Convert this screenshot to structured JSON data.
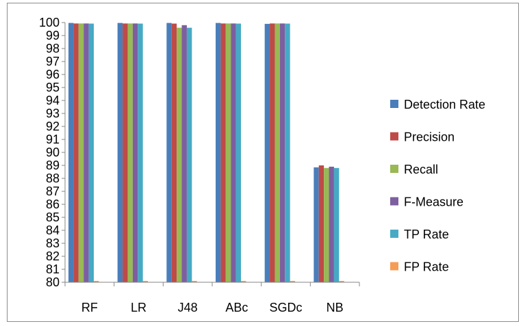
{
  "chart_data": {
    "type": "bar",
    "title": "",
    "xlabel": "",
    "ylabel": "",
    "categories": [
      "RF",
      "LR",
      "J48",
      "ABc",
      "SGDc",
      "NB"
    ],
    "ylim": [
      80,
      100
    ],
    "yticks": [
      "80",
      "81",
      "82",
      "83",
      "84",
      "85",
      "86",
      "87",
      "88",
      "89",
      "90",
      "91",
      "92",
      "93",
      "94",
      "95",
      "96",
      "97",
      "98",
      "99",
      "100"
    ],
    "legend_position": "right",
    "grid": false,
    "series": [
      {
        "name": "Detection Rate",
        "color": "#4a7ebb",
        "values": [
          99.97,
          99.97,
          99.97,
          99.97,
          99.9,
          88.85
        ]
      },
      {
        "name": "Precision",
        "color": "#be4b48",
        "values": [
          99.93,
          99.93,
          99.92,
          99.93,
          99.93,
          89.0
        ]
      },
      {
        "name": "Recall",
        "color": "#98b954",
        "values": [
          99.93,
          99.93,
          99.6,
          99.93,
          99.93,
          88.8
        ]
      },
      {
        "name": "F-Measure",
        "color": "#7d5fa0",
        "values": [
          99.93,
          99.93,
          99.8,
          99.93,
          99.93,
          88.9
        ]
      },
      {
        "name": "TP Rate",
        "color": "#46aac5",
        "values": [
          99.92,
          99.92,
          99.6,
          99.92,
          99.92,
          88.8
        ]
      },
      {
        "name": "FP Rate",
        "color": "#f59d56",
        "values": [
          0.04,
          0.04,
          0.05,
          0.04,
          0.04,
          0.05
        ]
      }
    ]
  }
}
